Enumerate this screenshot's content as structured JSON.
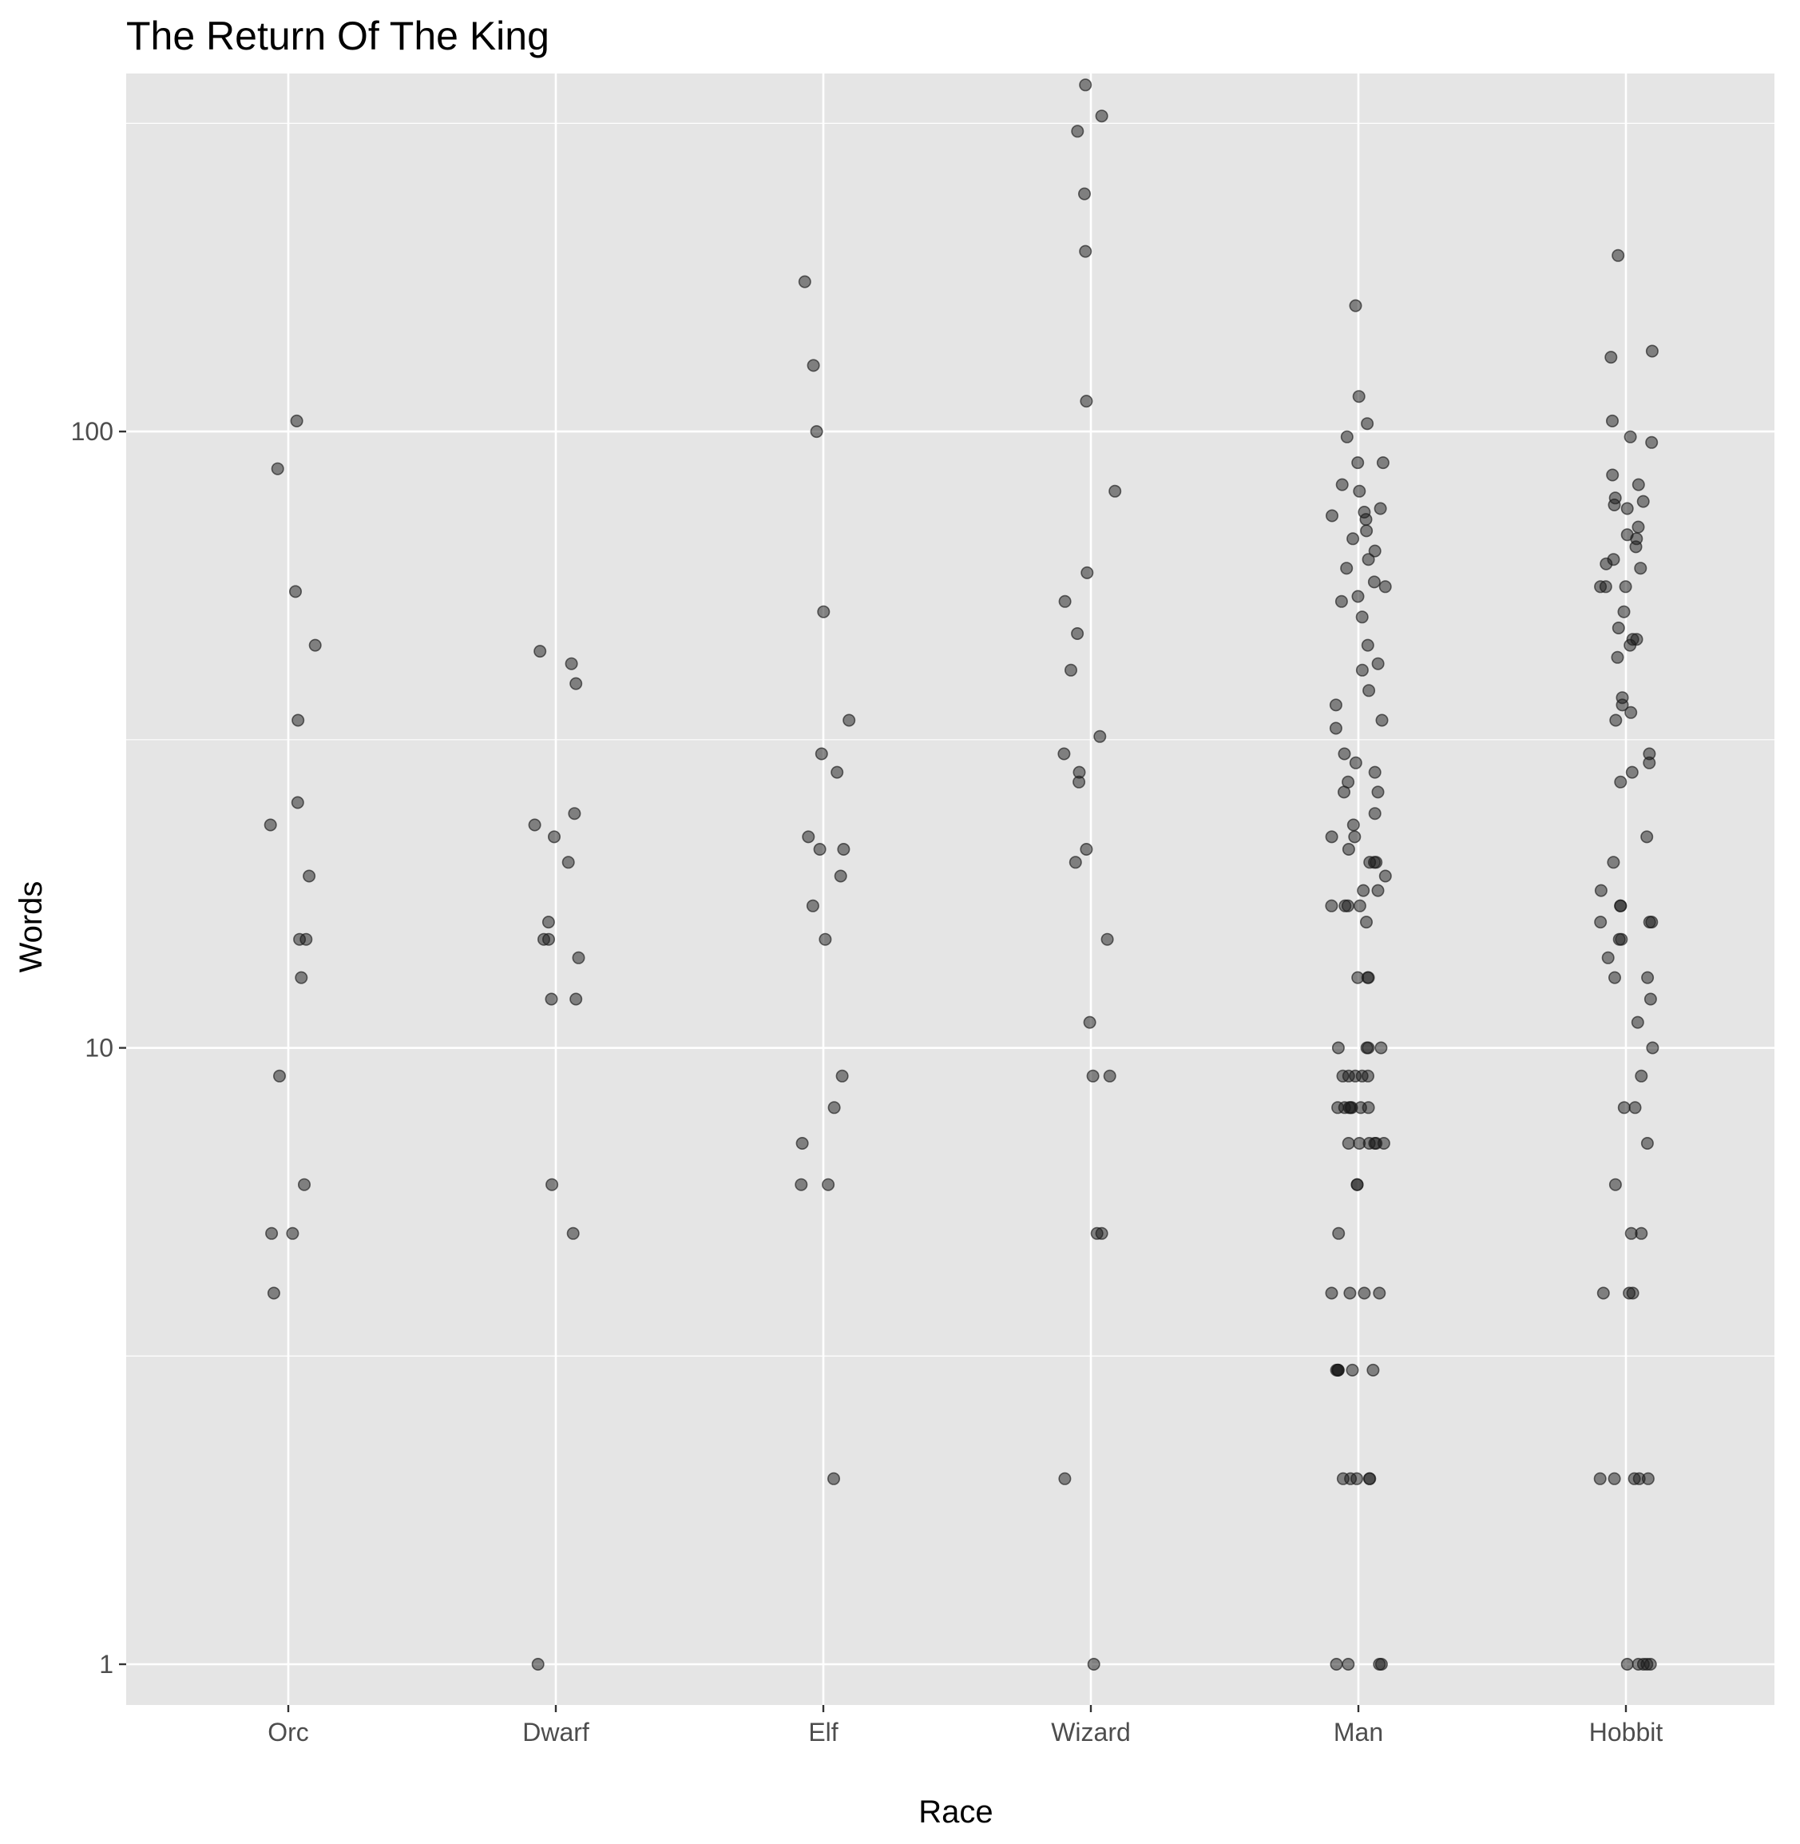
{
  "chart_data": {
    "type": "scatter",
    "title": "The Return Of The King",
    "xlabel": "Race",
    "ylabel": "Words",
    "y_scale": "log10",
    "ylim": [
      0.75,
      420
    ],
    "grid": true,
    "categories": [
      "Orc",
      "Dwarf",
      "Elf",
      "Wizard",
      "Man",
      "Hobbit"
    ],
    "y_ticks": [
      1,
      10,
      100
    ],
    "y_tick_labels": [
      "1",
      "10",
      "100"
    ],
    "colors": {
      "panel": "#e5e5e5",
      "grid": "#ffffff",
      "point": "#1a1a1a",
      "tick_text": "#4d4d4d"
    },
    "points": [
      {
        "race": "Orc",
        "values": [
          104,
          87,
          55,
          45,
          34,
          25,
          23,
          19,
          15,
          15,
          13,
          9,
          6,
          5,
          5,
          4
        ]
      },
      {
        "race": "Dwarf",
        "values": [
          44,
          42,
          39,
          24,
          23,
          22,
          20,
          16,
          15,
          15,
          14,
          12,
          12,
          6,
          5,
          1
        ]
      },
      {
        "race": "Elf",
        "values": [
          175,
          128,
          100,
          51,
          34,
          30,
          28,
          22,
          21,
          21,
          19,
          17,
          15,
          9,
          8,
          7,
          6,
          6,
          2
        ]
      },
      {
        "race": "Wizard",
        "values": [
          365,
          325,
          307,
          243,
          196,
          112,
          80,
          59,
          53,
          47,
          41,
          32,
          30,
          28,
          27,
          21,
          20,
          15,
          11,
          9,
          9,
          5,
          5,
          2,
          1
        ]
      },
      {
        "race": "Man",
        "values": [
          160,
          114,
          103,
          98,
          89,
          89,
          82,
          80,
          75,
          74,
          73,
          72,
          69,
          67,
          64,
          62,
          60,
          57,
          56,
          54,
          53,
          50,
          45,
          42,
          41,
          38,
          36,
          34,
          33,
          30,
          29,
          28,
          27,
          26,
          26,
          24,
          23,
          22,
          22,
          21,
          20,
          20,
          20,
          19,
          18,
          18,
          17,
          17,
          17,
          17,
          16,
          13,
          13,
          13,
          10,
          10,
          10,
          10,
          9,
          9,
          9,
          9,
          9,
          8,
          8,
          8,
          8,
          8,
          8,
          8,
          7,
          7,
          7,
          7,
          7,
          7,
          6,
          6,
          5,
          4,
          4,
          4,
          4,
          3,
          3,
          3,
          3,
          3,
          3,
          2,
          2,
          2,
          2,
          2,
          1,
          1,
          1,
          1
        ]
      },
      {
        "race": "Hobbit",
        "values": [
          193,
          135,
          132,
          104,
          98,
          96,
          85,
          82,
          78,
          77,
          76,
          75,
          70,
          68,
          67,
          65,
          62,
          61,
          60,
          56,
          56,
          56,
          51,
          48,
          46,
          46,
          45,
          43,
          37,
          36,
          35,
          34,
          30,
          29,
          28,
          27,
          22,
          20,
          18,
          17,
          17,
          16,
          16,
          16,
          15,
          15,
          14,
          13,
          13,
          12,
          11,
          10,
          9,
          8,
          8,
          7,
          6,
          5,
          5,
          4,
          4,
          4,
          2,
          2,
          2,
          2,
          2,
          1,
          1,
          1,
          1,
          1
        ]
      }
    ]
  }
}
